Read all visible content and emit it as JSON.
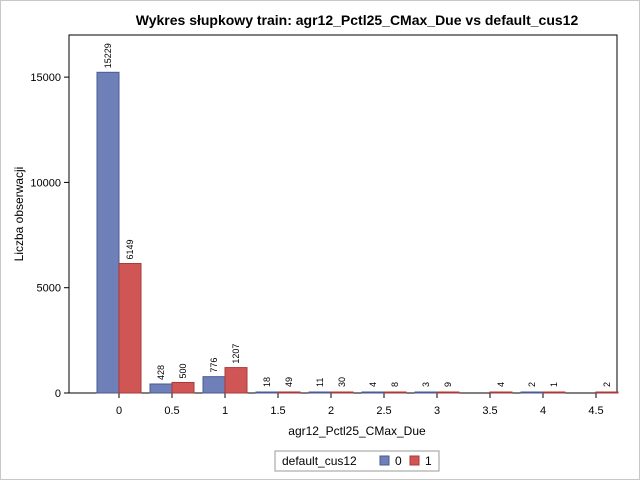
{
  "chart_data": {
    "type": "bar",
    "title": "Wykres słupkowy train: agr12_Pctl25_CMax_Due vs default_cus12",
    "xlabel": "agr12_Pctl25_CMax_Due",
    "ylabel": "Liczba obserwacji",
    "categories": [
      "0",
      "0.5",
      "1",
      "1.5",
      "2",
      "2.5",
      "3",
      "3.5",
      "4",
      "4.5"
    ],
    "series": [
      {
        "name": "0",
        "color": "#6f7fb8",
        "stroke": "#4a5a96",
        "values": [
          15229,
          428,
          776,
          18,
          11,
          4,
          3,
          null,
          2,
          null
        ],
        "labels": [
          "15229",
          "428",
          "776",
          "18",
          "11",
          "4",
          "3",
          "",
          "2",
          ""
        ]
      },
      {
        "name": "1",
        "color": "#d05656",
        "stroke": "#a83a3a",
        "values": [
          6149,
          500,
          1207,
          49,
          30,
          8,
          9,
          4,
          1,
          2
        ],
        "labels": [
          "6149",
          "500",
          "1207",
          "49",
          "30",
          "8",
          "9",
          "4",
          "1",
          "2"
        ]
      }
    ],
    "ylim": [
      0,
      17000
    ],
    "yticks": [
      0,
      5000,
      10000,
      15000
    ],
    "ytick_labels": [
      "0",
      "5000",
      "10000",
      "15000"
    ],
    "grid": false,
    "legend": {
      "title": "default_cus12",
      "placement": "bottom-center"
    }
  }
}
